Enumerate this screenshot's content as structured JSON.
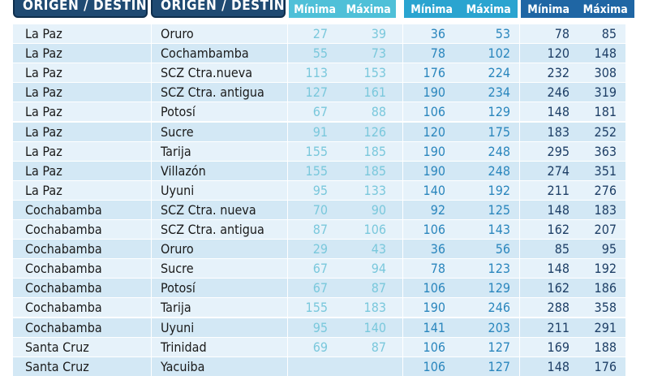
{
  "headers": {
    "origin_destino": "ORIGEN / DESTINO",
    "destino": "ORIGEN / DESTINO",
    "minima": "Mínima",
    "maxima": "Máxima"
  },
  "rows": [
    {
      "origen": "La Paz",
      "destino": "Oruro",
      "v": [
        "27",
        "39",
        "36",
        "53",
        "78",
        "85"
      ]
    },
    {
      "origen": "La Paz",
      "destino": "Cochambamba",
      "v": [
        "55",
        "73",
        "78",
        "102",
        "120",
        "148"
      ]
    },
    {
      "origen": "La Paz",
      "destino": "SCZ Ctra.nueva",
      "v": [
        "113",
        "153",
        "176",
        "224",
        "232",
        "308"
      ]
    },
    {
      "origen": "La Paz",
      "destino": "SCZ Ctra. antigua",
      "v": [
        "127",
        "161",
        "190",
        "234",
        "246",
        "319"
      ]
    },
    {
      "origen": "La Paz",
      "destino": "Potosí",
      "v": [
        "67",
        "88",
        "106",
        "129",
        "148",
        "181"
      ]
    },
    {
      "origen": "La Paz",
      "destino": "Sucre",
      "v": [
        "91",
        "126",
        "120",
        "175",
        "183",
        "252"
      ]
    },
    {
      "origen": "La Paz",
      "destino": "Tarija",
      "v": [
        "155",
        "185",
        "190",
        "248",
        "295",
        "363"
      ]
    },
    {
      "origen": "La Paz",
      "destino": "Villazón",
      "v": [
        "155",
        "185",
        "190",
        "248",
        "274",
        "351"
      ]
    },
    {
      "origen": "La Paz",
      "destino": "Uyuni",
      "v": [
        "95",
        "133",
        "140",
        "192",
        "211",
        "276"
      ]
    },
    {
      "origen": "Cochabamba",
      "destino": "SCZ Ctra. nueva",
      "v": [
        "70",
        "90",
        "92",
        "125",
        "148",
        "183"
      ]
    },
    {
      "origen": "Cochabamba",
      "destino": "SCZ Ctra. antigua",
      "v": [
        "87",
        "106",
        "106",
        "143",
        "162",
        "207"
      ]
    },
    {
      "origen": "Cochabamba",
      "destino": "Oruro",
      "v": [
        "29",
        "43",
        "36",
        "56",
        "85",
        "95"
      ]
    },
    {
      "origen": "Cochabamba",
      "destino": "Sucre",
      "v": [
        "67",
        "94",
        "78",
        "123",
        "148",
        "192"
      ]
    },
    {
      "origen": "Cochabamba",
      "destino": "Potosí",
      "v": [
        "67",
        "87",
        "106",
        "129",
        "162",
        "186"
      ]
    },
    {
      "origen": "Cochabamba",
      "destino": "Tarija",
      "v": [
        "155",
        "183",
        "190",
        "246",
        "288",
        "358"
      ]
    },
    {
      "origen": "Cochabamba",
      "destino": "Uyuni",
      "v": [
        "95",
        "140",
        "141",
        "203",
        "211",
        "291"
      ]
    },
    {
      "origen": "Santa Cruz",
      "destino": "Trinidad",
      "v": [
        "69",
        "87",
        "106",
        "127",
        "169",
        "188"
      ]
    },
    {
      "origen": "Santa Cruz",
      "destino": "Yacuiba",
      "v": [
        "",
        "",
        "106",
        "127",
        "148",
        "176"
      ]
    }
  ],
  "colors": {
    "header_dark": "#1f4a72",
    "col_light": "#4fc0d8",
    "col_mid": "#2aa4d0",
    "col_dark": "#1f66a4"
  }
}
